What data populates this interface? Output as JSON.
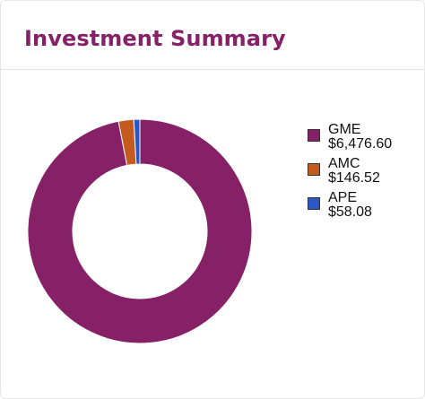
{
  "title": "Investment Summary",
  "colors": {
    "title": "#862167",
    "GME": "#862167",
    "AMC": "#c55a1e",
    "APE": "#2a56c6"
  },
  "chart_data": {
    "type": "pie",
    "variant": "donut",
    "legend_position": "right",
    "slices": [
      {
        "label": "GME",
        "value": 6476.6,
        "value_label": "$6,476.60",
        "color": "#862167"
      },
      {
        "label": "AMC",
        "value": 146.52,
        "value_label": "$146.52",
        "color": "#c55a1e"
      },
      {
        "label": "APE",
        "value": 58.08,
        "value_label": "$58.08",
        "color": "#2a56c6"
      }
    ]
  }
}
